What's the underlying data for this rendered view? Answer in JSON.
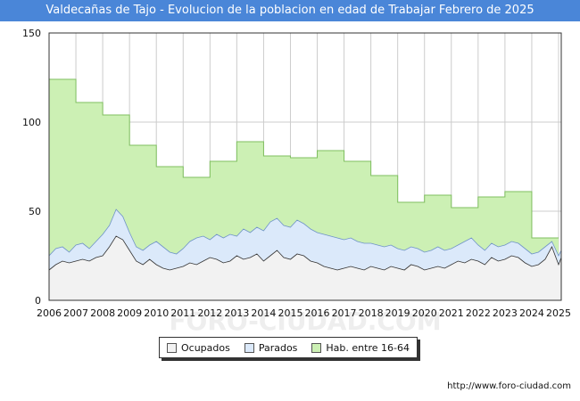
{
  "chart_data": {
    "type": "area",
    "title": "Valdecañas de Tajo - Evolucion de la poblacion en edad de Trabajar Febrero de 2025",
    "xlabel": "",
    "ylabel": "",
    "ylim": [
      0,
      150
    ],
    "xlim": [
      2006,
      2025.1
    ],
    "yticks": [
      "0",
      "50",
      "100",
      "150"
    ],
    "xticks": [
      "2006",
      "2007",
      "2008",
      "2009",
      "2010",
      "2011",
      "2012",
      "2013",
      "2014",
      "2015",
      "2016",
      "2017",
      "2018",
      "2019",
      "2020",
      "2021",
      "2022",
      "2023",
      "2024",
      "2025"
    ],
    "watermark": "FORO-CIUDAD.COM",
    "colors": {
      "hab": "#ccf0b4",
      "hab_line": "#7fbf5f",
      "parados": "#dbe9fa",
      "parados_line": "#6f93c8",
      "ocupados": "#f2f2f2",
      "ocupados_line": "#333333",
      "grid": "#cccccc"
    },
    "series": [
      {
        "name": "Hab. entre 16-64",
        "x": [
          2006,
          2007,
          2008,
          2009,
          2010,
          2011,
          2012,
          2013,
          2014,
          2015,
          2016,
          2017,
          2018,
          2019,
          2020,
          2021,
          2022,
          2023,
          2024
        ],
        "values": [
          124,
          111,
          104,
          87,
          75,
          69,
          78,
          89,
          81,
          80,
          84,
          78,
          70,
          55,
          59,
          52,
          58,
          61,
          35
        ]
      },
      {
        "name": "Parados",
        "x": [
          2006,
          2006.25,
          2006.5,
          2006.75,
          2007,
          2007.25,
          2007.5,
          2007.75,
          2008,
          2008.25,
          2008.5,
          2008.75,
          2009,
          2009.25,
          2009.5,
          2009.75,
          2010,
          2010.25,
          2010.5,
          2010.75,
          2011,
          2011.25,
          2011.5,
          2011.75,
          2012,
          2012.25,
          2012.5,
          2012.75,
          2013,
          2013.25,
          2013.5,
          2013.75,
          2014,
          2014.25,
          2014.5,
          2014.75,
          2015,
          2015.25,
          2015.5,
          2015.75,
          2016,
          2016.25,
          2016.5,
          2016.75,
          2017,
          2017.25,
          2017.5,
          2017.75,
          2018,
          2018.25,
          2018.5,
          2018.75,
          2019,
          2019.25,
          2019.5,
          2019.75,
          2020,
          2020.25,
          2020.5,
          2020.75,
          2021,
          2021.25,
          2021.5,
          2021.75,
          2022,
          2022.25,
          2022.5,
          2022.75,
          2023,
          2023.25,
          2023.5,
          2023.75,
          2024,
          2024.25,
          2024.5,
          2024.75,
          2025,
          2025.1
        ],
        "values": [
          25,
          29,
          30,
          27,
          31,
          32,
          29,
          33,
          37,
          42,
          51,
          47,
          38,
          30,
          28,
          31,
          33,
          30,
          27,
          26,
          29,
          33,
          35,
          36,
          34,
          37,
          35,
          37,
          36,
          40,
          38,
          41,
          39,
          44,
          46,
          42,
          41,
          45,
          43,
          40,
          38,
          37,
          36,
          35,
          34,
          35,
          33,
          32,
          32,
          31,
          30,
          31,
          29,
          28,
          30,
          29,
          27,
          28,
          30,
          28,
          29,
          31,
          33,
          35,
          31,
          28,
          32,
          30,
          31,
          33,
          32,
          29,
          26,
          27,
          30,
          33,
          25,
          28
        ]
      },
      {
        "name": "Ocupados",
        "x": [
          2006,
          2006.25,
          2006.5,
          2006.75,
          2007,
          2007.25,
          2007.5,
          2007.75,
          2008,
          2008.25,
          2008.5,
          2008.75,
          2009,
          2009.25,
          2009.5,
          2009.75,
          2010,
          2010.25,
          2010.5,
          2010.75,
          2011,
          2011.25,
          2011.5,
          2011.75,
          2012,
          2012.25,
          2012.5,
          2012.75,
          2013,
          2013.25,
          2013.5,
          2013.75,
          2014,
          2014.25,
          2014.5,
          2014.75,
          2015,
          2015.25,
          2015.5,
          2015.75,
          2016,
          2016.25,
          2016.5,
          2016.75,
          2017,
          2017.25,
          2017.5,
          2017.75,
          2018,
          2018.25,
          2018.5,
          2018.75,
          2019,
          2019.25,
          2019.5,
          2019.75,
          2020,
          2020.25,
          2020.5,
          2020.75,
          2021,
          2021.25,
          2021.5,
          2021.75,
          2022,
          2022.25,
          2022.5,
          2022.75,
          2023,
          2023.25,
          2023.5,
          2023.75,
          2024,
          2024.25,
          2024.5,
          2024.75,
          2025,
          2025.1
        ],
        "values": [
          17,
          20,
          22,
          21,
          22,
          23,
          22,
          24,
          25,
          30,
          36,
          34,
          28,
          22,
          20,
          23,
          20,
          18,
          17,
          18,
          19,
          21,
          20,
          22,
          24,
          23,
          21,
          22,
          25,
          23,
          24,
          26,
          22,
          25,
          28,
          24,
          23,
          26,
          25,
          22,
          21,
          19,
          18,
          17,
          18,
          19,
          18,
          17,
          19,
          18,
          17,
          19,
          18,
          17,
          20,
          19,
          17,
          18,
          19,
          18,
          20,
          22,
          21,
          23,
          22,
          20,
          24,
          22,
          23,
          25,
          24,
          21,
          19,
          20,
          23,
          30,
          20,
          24
        ]
      }
    ]
  },
  "legend": {
    "ocupados": "Ocupados",
    "parados": "Parados",
    "hab": "Hab. entre 16-64"
  },
  "source": "http://www.foro-ciudad.com"
}
